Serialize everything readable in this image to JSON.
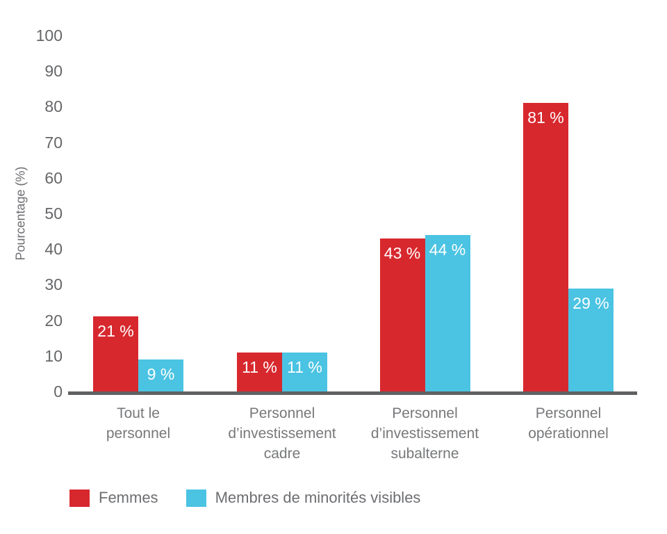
{
  "chart_data": {
    "type": "bar",
    "title": "",
    "xlabel": "",
    "ylabel": "Pourcentage (%)",
    "ylim": [
      0,
      100
    ],
    "ytick_step": 10,
    "grid": false,
    "legend_position": "bottom",
    "value_suffix": " %",
    "categories": [
      "Tout le\npersonnel",
      "Personnel\nd’investissement\ncadre",
      "Personnel\nd’investissement\nsubalterne",
      "Personnel\nopérationnel"
    ],
    "series": [
      {
        "name": "Femmes",
        "color": "#d7282e",
        "values": [
          21,
          11,
          43,
          81
        ]
      },
      {
        "name": "Membres de minorités visibles",
        "color": "#4bc3e2",
        "values": [
          9,
          11,
          44,
          29
        ]
      }
    ],
    "colors": {
      "axis_line": "#606162",
      "tick_text": "#656668",
      "category_text": "#77787a",
      "value_label_text": "#ffffff"
    }
  }
}
